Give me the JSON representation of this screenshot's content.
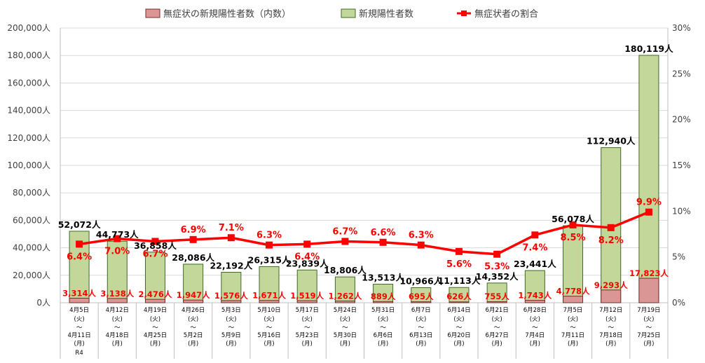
{
  "legend": {
    "asymptomatic": "無症状の新規陽性者数（内数）",
    "total": "新規陽性者数",
    "ratio": "無症状者の割合"
  },
  "colors": {
    "total_fill": "#c4d79b",
    "total_stroke": "#3d6b23",
    "asym_fill": "#da9694",
    "asym_stroke": "#7a2a2a",
    "line": "#ff0000",
    "label_red": "#ff0000",
    "grid": "#d9d9d9",
    "axis": "#bfbfbf"
  },
  "chart_data": {
    "type": "bar",
    "categories": [
      [
        "4月5日",
        "(火)",
        "～",
        "4月11日",
        "(月)",
        "R4"
      ],
      [
        "4月12日",
        "(火)",
        "～",
        "4月18日",
        "(月)"
      ],
      [
        "4月19日",
        "(火)",
        "～",
        "4月25日",
        "(月)"
      ],
      [
        "4月26日",
        "(火)",
        "～",
        "5月2日",
        "(月)"
      ],
      [
        "5月3日",
        "(火)",
        "～",
        "5月9日",
        "(月)"
      ],
      [
        "5月10日",
        "(火)",
        "～",
        "5月16日",
        "(月)"
      ],
      [
        "5月17日",
        "(火)",
        "～",
        "5月23日",
        "(月)"
      ],
      [
        "5月24日",
        "(火)",
        "～",
        "5月30日",
        "(月)"
      ],
      [
        "5月31日",
        "(火)",
        "～",
        "6月6日",
        "(月)"
      ],
      [
        "6月7日",
        "(火)",
        "～",
        "6月13日",
        "(月)"
      ],
      [
        "6月14日",
        "(火)",
        "～",
        "6月20日",
        "(月)"
      ],
      [
        "6月21日",
        "(火)",
        "～",
        "6月27日",
        "(月)"
      ],
      [
        "6月28日",
        "(火)",
        "～",
        "7月4日",
        "(月)"
      ],
      [
        "7月5日",
        "(火)",
        "～",
        "7月11日",
        "(月)"
      ],
      [
        "7月12日",
        "(火)",
        "～",
        "7月18日",
        "(月)"
      ],
      [
        "7月19日",
        "(火)",
        "～",
        "7月25日",
        "(月)"
      ]
    ],
    "series": [
      {
        "name": "新規陽性者数",
        "values": [
          52072,
          44773,
          36858,
          28086,
          22192,
          26315,
          23839,
          18806,
          13513,
          10966,
          11113,
          14352,
          23441,
          56078,
          112940,
          180119
        ],
        "labels": [
          "52,072人",
          "44,773人",
          "36,858人",
          "28,086人",
          "22,192人",
          "26,315人",
          "23,839人",
          "18,806人",
          "13,513人",
          "10,966人",
          "11,113人",
          "14,352人",
          "23,441人",
          "56,078人",
          "112,940人",
          "180,119人"
        ]
      },
      {
        "name": "無症状の新規陽性者数（内数）",
        "values": [
          3314,
          3138,
          2476,
          1947,
          1576,
          1671,
          1519,
          1262,
          889,
          695,
          626,
          755,
          1743,
          4778,
          9293,
          17823
        ],
        "labels": [
          "3,314人",
          "3,138人",
          "2,476人",
          "1,947人",
          "1,576人",
          "1,671人",
          "1,519人",
          "1,262人",
          "889人",
          "695人",
          "626人",
          "755人",
          "1,743人",
          "4,778人",
          "9,293人",
          "17,823人"
        ]
      },
      {
        "name": "無症状者の割合",
        "axis": "right",
        "values": [
          6.4,
          7.0,
          6.7,
          6.9,
          7.1,
          6.3,
          6.4,
          6.7,
          6.6,
          6.3,
          5.6,
          5.3,
          7.4,
          8.5,
          8.2,
          9.9
        ],
        "labels": [
          "6.4%",
          "7.0%",
          "6.7%",
          "6.9%",
          "7.1%",
          "6.3%",
          "6.4%",
          "6.7%",
          "6.6%",
          "6.3%",
          "5.6%",
          "5.3%",
          "7.4%",
          "8.5%",
          "8.2%",
          "9.9%"
        ]
      }
    ],
    "ylim": [
      0,
      200000
    ],
    "y2lim": [
      0,
      30
    ],
    "y_ticks": [
      "0人",
      "20,000人",
      "40,000人",
      "60,000人",
      "80,000人",
      "100,000人",
      "120,000人",
      "140,000人",
      "160,000人",
      "180,000人",
      "200,000人"
    ],
    "y2_ticks": [
      "0%",
      "5%",
      "10%",
      "15%",
      "20%",
      "25%",
      "30%"
    ],
    "grid": true,
    "legend_position": "top"
  }
}
